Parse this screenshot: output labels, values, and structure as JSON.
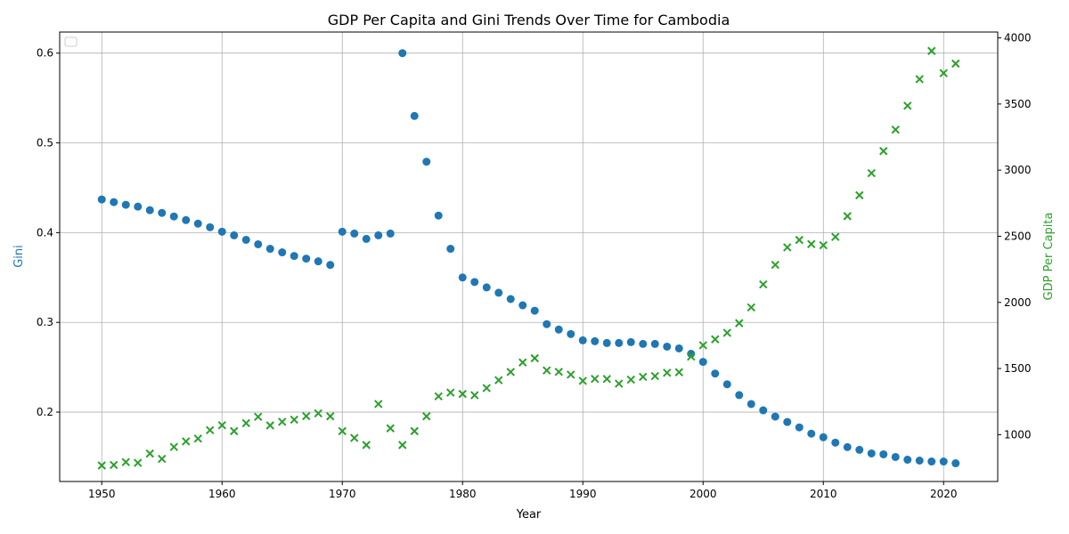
{
  "chart_data": {
    "type": "scatter",
    "title": "GDP Per Capita and Gini Trends Over Time for Cambodia",
    "xlabel": "Year",
    "ylabel_left": "Gini",
    "ylabel_right": "GDP Per Capita",
    "xlim": [
      1946.5,
      2024.5
    ],
    "ylim_left": [
      0.1227,
      0.6235
    ],
    "ylim_right": [
      646,
      4044
    ],
    "x_ticks": [
      1950,
      1960,
      1970,
      1980,
      1990,
      2000,
      2010,
      2020
    ],
    "y_left_ticks": [
      0.2,
      0.3,
      0.4,
      0.5,
      0.6
    ],
    "y_right_ticks": [
      1000,
      1500,
      2000,
      2500,
      3000,
      3500,
      4000
    ],
    "grid": true,
    "legend": "upper left (empty)",
    "colors": {
      "gini": "#1f77b4",
      "gdp": "#2ca02c",
      "axis_left_label": "#1f77b4",
      "axis_right_label": "#2ca02c"
    },
    "series": [
      {
        "axis": "left",
        "marker": "circle",
        "x": [
          1950,
          1951,
          1952,
          1953,
          1954,
          1955,
          1956,
          1957,
          1958,
          1959,
          1960,
          1961,
          1962,
          1963,
          1964,
          1965,
          1966,
          1967,
          1968,
          1969,
          1970,
          1971,
          1972,
          1973,
          1974,
          1975,
          1976,
          1977,
          1978,
          1979,
          1980,
          1981,
          1982,
          1983,
          1984,
          1985,
          1986,
          1987,
          1988,
          1989,
          1990,
          1991,
          1992,
          1993,
          1994,
          1995,
          1996,
          1997,
          1998,
          1999,
          2000,
          2001,
          2002,
          2003,
          2004,
          2005,
          2006,
          2007,
          2008,
          2009,
          2010,
          2011,
          2012,
          2013,
          2014,
          2015,
          2016,
          2017,
          2018,
          2019,
          2020,
          2021
        ],
        "values": [
          0.437,
          0.434,
          0.431,
          0.429,
          0.425,
          0.422,
          0.418,
          0.414,
          0.41,
          0.406,
          0.401,
          0.397,
          0.392,
          0.387,
          0.382,
          0.378,
          0.374,
          0.371,
          0.368,
          0.364,
          0.401,
          0.399,
          0.393,
          0.397,
          0.399,
          0.6,
          0.53,
          0.479,
          0.419,
          0.382,
          0.35,
          0.345,
          0.339,
          0.333,
          0.326,
          0.319,
          0.313,
          0.298,
          0.292,
          0.287,
          0.28,
          0.279,
          0.277,
          0.277,
          0.278,
          0.276,
          0.276,
          0.273,
          0.271,
          0.265,
          0.256,
          0.243,
          0.231,
          0.219,
          0.209,
          0.202,
          0.195,
          0.189,
          0.183,
          0.176,
          0.172,
          0.166,
          0.161,
          0.158,
          0.154,
          0.153,
          0.15,
          0.147,
          0.146,
          0.145,
          0.145,
          0.143
        ]
      },
      {
        "axis": "right",
        "marker": "x",
        "x": [
          1950,
          1951,
          1952,
          1953,
          1954,
          1955,
          1956,
          1957,
          1958,
          1959,
          1960,
          1961,
          1962,
          1963,
          1964,
          1965,
          1966,
          1967,
          1968,
          1969,
          1970,
          1971,
          1972,
          1973,
          1974,
          1975,
          1976,
          1977,
          1978,
          1979,
          1980,
          1981,
          1982,
          1983,
          1984,
          1985,
          1986,
          1987,
          1988,
          1989,
          1990,
          1991,
          1992,
          1993,
          1994,
          1995,
          1996,
          1997,
          1998,
          1999,
          2000,
          2001,
          2002,
          2003,
          2004,
          2005,
          2006,
          2007,
          2008,
          2009,
          2010,
          2011,
          2012,
          2013,
          2014,
          2015,
          2016,
          2017,
          2018,
          2019,
          2020,
          2021
        ],
        "values": [
          767,
          771,
          793,
          787,
          857,
          817,
          907,
          949,
          970,
          1034,
          1071,
          1027,
          1087,
          1135,
          1070,
          1097,
          1113,
          1140,
          1161,
          1139,
          1027,
          975,
          922,
          1232,
          1048,
          922,
          1027,
          1139,
          1290,
          1318,
          1308,
          1298,
          1352,
          1412,
          1474,
          1546,
          1578,
          1486,
          1475,
          1454,
          1407,
          1422,
          1421,
          1386,
          1416,
          1437,
          1443,
          1468,
          1472,
          1590,
          1676,
          1721,
          1770,
          1843,
          1962,
          2136,
          2284,
          2416,
          2472,
          2441,
          2432,
          2495,
          2652,
          2810,
          2977,
          3144,
          3306,
          3487,
          3688,
          3901,
          3733,
          3805
        ]
      }
    ]
  }
}
